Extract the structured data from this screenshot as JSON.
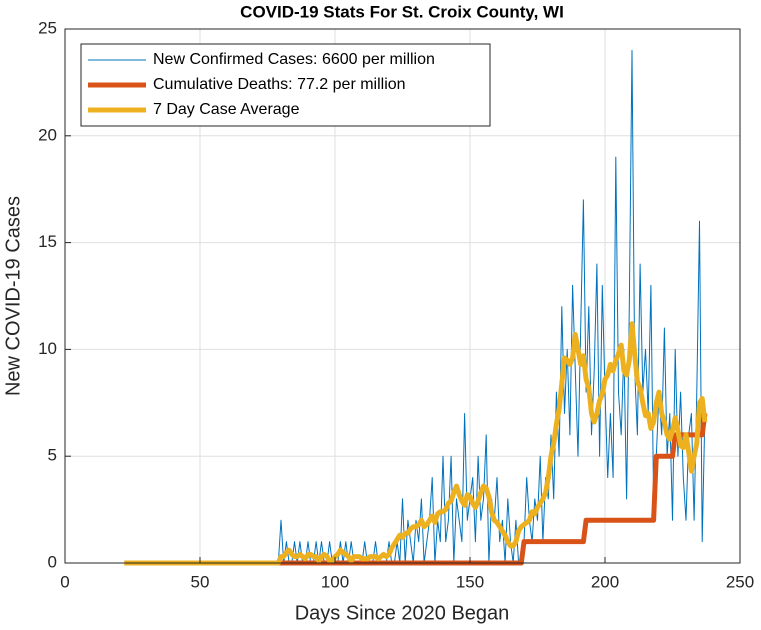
{
  "chart_data": {
    "type": "line",
    "title": "COVID-19 Stats For St. Croix County, WI",
    "xlabel": "Days Since 2020 Began",
    "ylabel": "New COVID-19 Cases",
    "xlim": [
      0,
      250
    ],
    "xticks": [
      0,
      50,
      100,
      150,
      200,
      250
    ],
    "ylim": [
      0,
      25
    ],
    "yticks": [
      0,
      5,
      10,
      15,
      20,
      25
    ],
    "grid": true,
    "legend": "upper left",
    "x": [
      22,
      23,
      24,
      25,
      26,
      27,
      28,
      29,
      30,
      31,
      32,
      33,
      34,
      35,
      36,
      37,
      38,
      39,
      40,
      41,
      42,
      43,
      44,
      45,
      46,
      47,
      48,
      49,
      50,
      51,
      52,
      53,
      54,
      55,
      56,
      57,
      58,
      59,
      60,
      61,
      62,
      63,
      64,
      65,
      66,
      67,
      68,
      69,
      70,
      71,
      72,
      73,
      74,
      75,
      76,
      77,
      78,
      79,
      80,
      81,
      82,
      83,
      84,
      85,
      86,
      87,
      88,
      89,
      90,
      91,
      92,
      93,
      94,
      95,
      96,
      97,
      98,
      99,
      100,
      101,
      102,
      103,
      104,
      105,
      106,
      107,
      108,
      109,
      110,
      111,
      112,
      113,
      114,
      115,
      116,
      117,
      118,
      119,
      120,
      121,
      122,
      123,
      124,
      125,
      126,
      127,
      128,
      129,
      130,
      131,
      132,
      133,
      134,
      135,
      136,
      137,
      138,
      139,
      140,
      141,
      142,
      143,
      144,
      145,
      146,
      147,
      148,
      149,
      150,
      151,
      152,
      153,
      154,
      155,
      156,
      157,
      158,
      159,
      160,
      161,
      162,
      163,
      164,
      165,
      166,
      167,
      168,
      169,
      170,
      171,
      172,
      173,
      174,
      175,
      176,
      177,
      178,
      179,
      180,
      181,
      182,
      183,
      184,
      185,
      186,
      187,
      188,
      189,
      190,
      191,
      192,
      193,
      194,
      195,
      196,
      197,
      198,
      199,
      200,
      201,
      202,
      203,
      204,
      205,
      206,
      207,
      208,
      209,
      210,
      211,
      212,
      213,
      214,
      215,
      216,
      217,
      218,
      219,
      220,
      221,
      222,
      223,
      224,
      225,
      226,
      227,
      228,
      229,
      230,
      231,
      232,
      233,
      234,
      235,
      236,
      237
    ],
    "series": [
      {
        "name": "New Confirmed Cases: 6600 per million",
        "color": "#0072bd",
        "width": 1,
        "values": [
          0,
          0,
          0,
          0,
          0,
          0,
          0,
          0,
          0,
          0,
          0,
          0,
          0,
          0,
          0,
          0,
          0,
          0,
          0,
          0,
          0,
          0,
          0,
          0,
          0,
          0,
          0,
          0,
          0,
          0,
          0,
          0,
          0,
          0,
          0,
          0,
          0,
          0,
          0,
          0,
          0,
          0,
          0,
          0,
          0,
          0,
          0,
          0,
          0,
          0,
          0,
          0,
          0,
          0,
          0,
          0,
          0,
          0,
          2,
          0,
          1,
          0,
          0,
          1,
          0,
          1,
          0,
          0,
          1,
          0,
          0,
          1,
          0,
          1,
          0,
          0,
          1,
          0,
          0,
          0,
          1,
          0,
          1,
          0,
          1,
          0,
          0,
          0,
          0,
          1,
          0,
          0,
          0,
          1,
          0,
          0,
          0,
          0,
          1,
          0,
          0,
          1,
          0,
          3,
          0,
          2,
          1,
          0,
          2,
          1,
          3,
          0,
          1,
          2,
          4,
          0,
          2,
          1,
          5,
          1,
          2,
          5,
          0,
          3,
          2,
          1,
          7,
          2,
          3,
          4,
          1,
          5,
          2,
          3,
          6,
          0,
          3,
          2,
          4,
          1,
          2,
          0,
          3,
          1,
          0,
          2,
          0,
          0,
          1,
          4,
          2,
          1,
          3,
          2,
          5,
          1,
          4,
          3,
          6,
          3,
          8,
          5,
          12,
          7,
          10,
          6,
          13,
          9,
          5,
          11,
          17,
          8,
          12,
          6,
          9,
          14,
          5,
          13,
          8,
          4,
          7,
          4,
          19,
          8,
          6,
          10,
          3,
          12,
          24,
          9,
          6,
          14,
          8,
          10,
          7,
          13,
          3,
          5,
          8,
          6,
          11,
          5,
          7,
          2,
          10,
          5,
          8,
          4,
          2,
          6,
          7,
          2,
          8,
          16,
          1,
          7
        ]
      },
      {
        "name": "Cumulative Deaths: 77.2 per million",
        "color": "#d95319",
        "width": 5,
        "values": [
          0,
          0,
          0,
          0,
          0,
          0,
          0,
          0,
          0,
          0,
          0,
          0,
          0,
          0,
          0,
          0,
          0,
          0,
          0,
          0,
          0,
          0,
          0,
          0,
          0,
          0,
          0,
          0,
          0,
          0,
          0,
          0,
          0,
          0,
          0,
          0,
          0,
          0,
          0,
          0,
          0,
          0,
          0,
          0,
          0,
          0,
          0,
          0,
          0,
          0,
          0,
          0,
          0,
          0,
          0,
          0,
          0,
          0,
          0,
          0,
          0,
          0,
          0,
          0,
          0,
          0,
          0,
          0,
          0,
          0,
          0,
          0,
          0,
          0,
          0,
          0,
          0,
          0,
          0,
          0,
          0,
          0,
          0,
          0,
          0,
          0,
          0,
          0,
          0,
          0,
          0,
          0,
          0,
          0,
          0,
          0,
          0,
          0,
          0,
          0,
          0,
          0,
          0,
          0,
          0,
          0,
          0,
          0,
          0,
          0,
          0,
          0,
          0,
          0,
          0,
          0,
          0,
          0,
          0,
          0,
          0,
          0,
          0,
          0,
          0,
          0,
          0,
          0,
          0,
          0,
          0,
          0,
          0,
          0,
          0,
          0,
          0,
          0,
          0,
          0,
          0,
          0,
          0,
          0,
          0,
          0,
          0,
          0,
          1,
          1,
          1,
          1,
          1,
          1,
          1,
          1,
          1,
          1,
          1,
          1,
          1,
          1,
          1,
          1,
          1,
          1,
          1,
          1,
          1,
          1,
          1,
          2,
          2,
          2,
          2,
          2,
          2,
          2,
          2,
          2,
          2,
          2,
          2,
          2,
          2,
          2,
          2,
          2,
          2,
          2,
          2,
          2,
          2,
          2,
          2,
          2,
          2,
          5,
          5,
          5,
          5,
          5,
          5,
          5,
          6,
          6,
          6,
          6,
          6,
          6,
          6,
          6,
          6,
          6,
          6,
          7
        ]
      },
      {
        "name": "7 Day Case Average",
        "color": "#edb120",
        "width": 5,
        "values": [
          0,
          0,
          0,
          0,
          0,
          0,
          0,
          0,
          0,
          0,
          0,
          0,
          0,
          0,
          0,
          0,
          0,
          0,
          0,
          0,
          0,
          0,
          0,
          0,
          0,
          0,
          0,
          0,
          0,
          0,
          0,
          0,
          0,
          0,
          0,
          0,
          0,
          0,
          0,
          0,
          0,
          0,
          0,
          0,
          0,
          0,
          0,
          0,
          0,
          0,
          0,
          0,
          0,
          0,
          0,
          0,
          0,
          0,
          0.3,
          0.3,
          0.5,
          0.6,
          0.4,
          0.3,
          0.3,
          0.4,
          0.3,
          0.2,
          0.4,
          0.4,
          0.3,
          0.3,
          0.1,
          0.3,
          0.4,
          0.3,
          0.1,
          0.1,
          0.3,
          0.4,
          0.6,
          0.5,
          0.4,
          0.3,
          0.1,
          0.3,
          0.3,
          0.3,
          0.2,
          0.2,
          0.2,
          0.3,
          0.3,
          0.3,
          0.2,
          0.3,
          0.4,
          0.3,
          0.4,
          0.7,
          0.9,
          1.1,
          1.3,
          1.2,
          1.4,
          1.4,
          1.6,
          1.7,
          1.7,
          1.8,
          2.0,
          1.7,
          1.8,
          2.0,
          2.2,
          1.9,
          2.3,
          2.4,
          2.4,
          2.5,
          2.8,
          2.9,
          3.3,
          3.6,
          3.2,
          2.9,
          2.7,
          3.2,
          3.1,
          2.8,
          2.6,
          2.9,
          3.3,
          3.6,
          3.5,
          3.1,
          2.4,
          2.0,
          1.9,
          1.7,
          1.5,
          1.3,
          1.0,
          0.8,
          0.8,
          1.0,
          1.5,
          1.7,
          1.8,
          1.9,
          2.0,
          2.4,
          2.3,
          2.6,
          2.8,
          3.0,
          3.3,
          4.0,
          5.0,
          5.6,
          6.5,
          7.2,
          8.4,
          9.6,
          9.5,
          9.3,
          9.6,
          10.7,
          10.0,
          9.3,
          9.7,
          8.6,
          8.2,
          7.0,
          6.6,
          7.0,
          7.6,
          7.9,
          8.6,
          8.8,
          9.3,
          9.0,
          9.5,
          9.8,
          10.2,
          9.0,
          8.8,
          9.5,
          11.2,
          9.8,
          8.5,
          8.2,
          7.5,
          6.9,
          7.0,
          6.3,
          6.6,
          7.5,
          8.0,
          7.0,
          6.6,
          6.0,
          5.8,
          6.2,
          6.8,
          6.2,
          5.5,
          5.4,
          6.0,
          5.2,
          4.3,
          5.0,
          5.6,
          7.5,
          7.7,
          6.6
        ]
      }
    ]
  }
}
